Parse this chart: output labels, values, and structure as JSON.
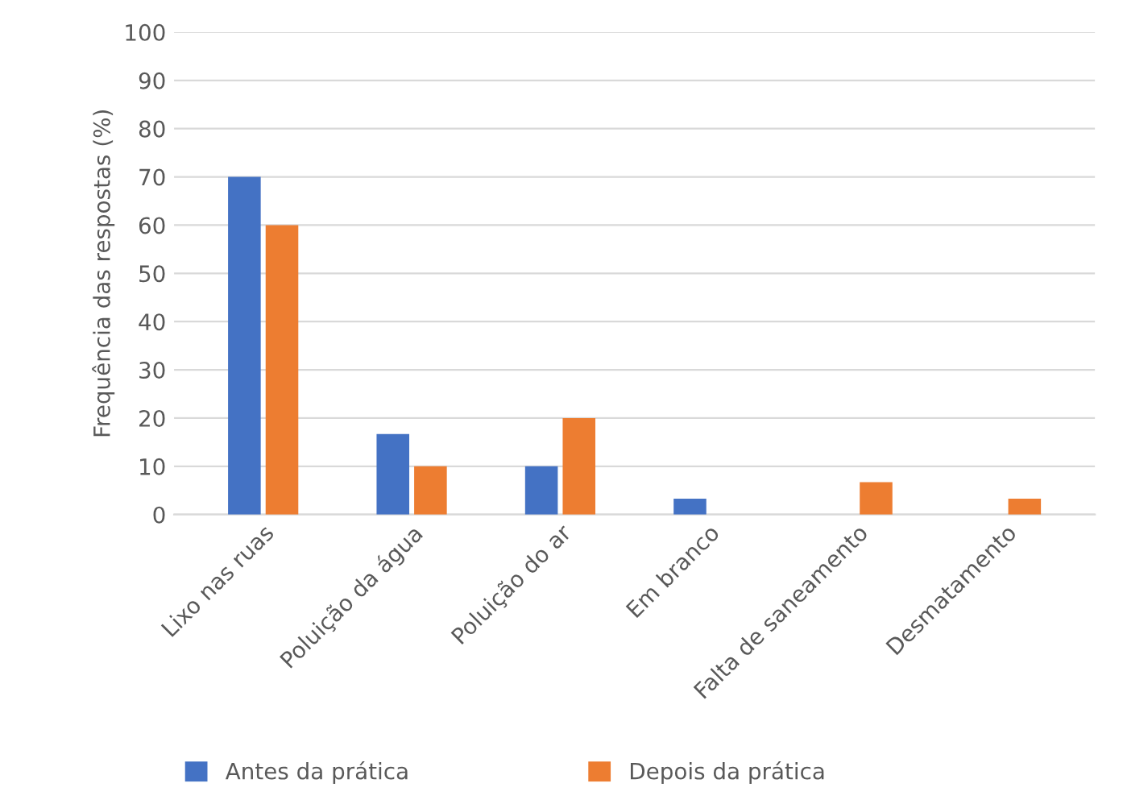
{
  "chart_data": {
    "type": "bar",
    "ylabel": "Frequência das respostas (%)",
    "categories": [
      "Lixo nas ruas",
      "Poluição da água",
      "Poluição do ar",
      "Em branco",
      "Falta de saneamento",
      "Desmatamento"
    ],
    "series": [
      {
        "name": "Antes da prática",
        "color": "#4472c4",
        "values": [
          70,
          16.7,
          10,
          3.3,
          null,
          null
        ]
      },
      {
        "name": "Depois da prática",
        "color": "#ed7d31",
        "values": [
          60,
          10,
          20,
          null,
          6.7,
          3.3
        ]
      }
    ],
    "ylim": [
      0,
      100
    ],
    "yticks": [
      0,
      10,
      20,
      30,
      40,
      50,
      60,
      70,
      80,
      90,
      100
    ],
    "grid": "y",
    "legend": "bottom"
  }
}
